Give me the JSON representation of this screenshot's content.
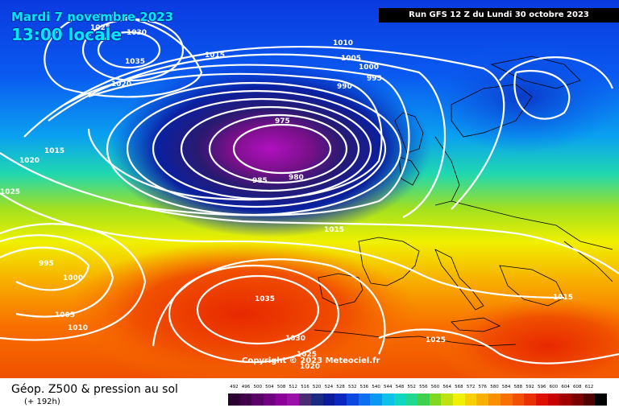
{
  "header": {
    "date": "Mardi 7 novembre 2023",
    "time": "13:00 locale",
    "run": "Run GFS 12 Z du Lundi 30 octobre 2023"
  },
  "copyright": "Copyright © 2023 Meteociel.fr",
  "legend": {
    "title": "Géop. Z500 & pression au sol",
    "subtitle": "(+ 192h)",
    "scale": [
      {
        "v": "492",
        "c": "#2a0030"
      },
      {
        "v": "496",
        "c": "#40004a"
      },
      {
        "v": "500",
        "c": "#580066"
      },
      {
        "v": "504",
        "c": "#700080"
      },
      {
        "v": "508",
        "c": "#8a0099"
      },
      {
        "v": "512",
        "c": "#9a10a8"
      },
      {
        "v": "516",
        "c": "#4a2a70"
      },
      {
        "v": "520",
        "c": "#1a2a80"
      },
      {
        "v": "524",
        "c": "#0a1a9a"
      },
      {
        "v": "528",
        "c": "#0a28c0"
      },
      {
        "v": "532",
        "c": "#0a48e0"
      },
      {
        "v": "536",
        "c": "#0a70f0"
      },
      {
        "v": "540",
        "c": "#0a98f0"
      },
      {
        "v": "544",
        "c": "#10c0e8"
      },
      {
        "v": "548",
        "c": "#10d8c0"
      },
      {
        "v": "552",
        "c": "#20d890"
      },
      {
        "v": "556",
        "c": "#40d050"
      },
      {
        "v": "560",
        "c": "#80d820"
      },
      {
        "v": "564",
        "c": "#c0e010"
      },
      {
        "v": "568",
        "c": "#f0f000"
      },
      {
        "v": "572",
        "c": "#f8d000"
      },
      {
        "v": "576",
        "c": "#f8b000"
      },
      {
        "v": "580",
        "c": "#f89000"
      },
      {
        "v": "584",
        "c": "#f87000"
      },
      {
        "v": "588",
        "c": "#f05000"
      },
      {
        "v": "592",
        "c": "#e83000"
      },
      {
        "v": "596",
        "c": "#e01000"
      },
      {
        "v": "600",
        "c": "#c80000"
      },
      {
        "v": "604",
        "c": "#a00000"
      },
      {
        "v": "608",
        "c": "#780000"
      },
      {
        "v": "612",
        "c": "#500000"
      },
      {
        "v": "",
        "c": "#000000"
      }
    ]
  },
  "map": {
    "pressure_labels": [
      {
        "text": "1025",
        "id": "p1025-nw"
      },
      {
        "text": "1030",
        "id": "p1030-n"
      },
      {
        "text": "1035",
        "id": "p1035-n"
      },
      {
        "text": "1015",
        "id": "p1015-n"
      },
      {
        "text": "1020",
        "id": "p1020-nw"
      },
      {
        "text": "1010",
        "id": "p1010-ne"
      },
      {
        "text": "1005",
        "id": "p1005-ne"
      },
      {
        "text": "1000",
        "id": "p1000-ne"
      },
      {
        "text": "995",
        "id": "p995-ne"
      },
      {
        "text": "990",
        "id": "p990-ne"
      },
      {
        "text": "975",
        "id": "p975-c"
      },
      {
        "text": "985",
        "id": "p985-c"
      },
      {
        "text": "980",
        "id": "p980-c"
      },
      {
        "text": "1015",
        "id": "p1015-w"
      },
      {
        "text": "1020",
        "id": "p1020-w"
      },
      {
        "text": "1025",
        "id": "p1025-w"
      },
      {
        "text": "1015",
        "id": "p1015-c"
      },
      {
        "text": "995",
        "id": "p995-sw"
      },
      {
        "text": "1000",
        "id": "p1000-sw"
      },
      {
        "text": "1005",
        "id": "p1005-sw"
      },
      {
        "text": "1010",
        "id": "p1010-sw"
      },
      {
        "text": "1035",
        "id": "p1035-s"
      },
      {
        "text": "1030",
        "id": "p1030-s"
      },
      {
        "text": "1025",
        "id": "p1025-s"
      },
      {
        "text": "1020",
        "id": "p1020-s"
      },
      {
        "text": "1025",
        "id": "p1025-se"
      },
      {
        "text": "1015",
        "id": "p1015-e"
      }
    ]
  }
}
